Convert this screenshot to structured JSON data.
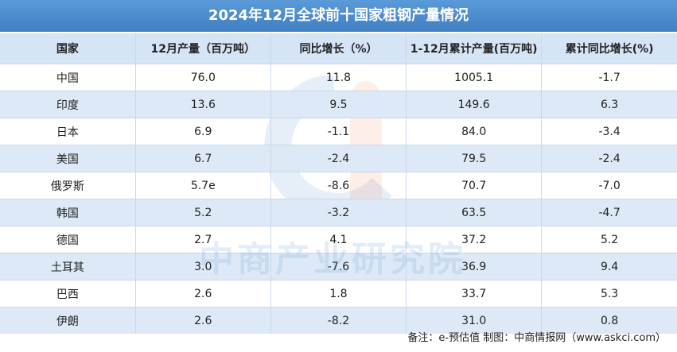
{
  "header": {
    "title": "2024年12月全球前十国家粗钢产量情况"
  },
  "table": {
    "columns": [
      "国家",
      "12月产量（百万吨）",
      "同比增长（%）",
      "1-12月累计产量(百万吨)",
      "累计同比增长(%)"
    ],
    "rows": [
      [
        "中国",
        "76.0",
        "11.8",
        "1005.1",
        "-1.7"
      ],
      [
        "印度",
        "13.6",
        "9.5",
        "149.6",
        "6.3"
      ],
      [
        "日本",
        "6.9",
        "-1.1",
        "84.0",
        "-3.4"
      ],
      [
        "美国",
        "6.7",
        "-2.4",
        "79.5",
        "-2.4"
      ],
      [
        "俄罗斯",
        "5.7e",
        "-8.6",
        "70.7",
        "-7.0"
      ],
      [
        "韩国",
        "5.2",
        "-3.2",
        "63.5",
        "-4.7"
      ],
      [
        "德国",
        "2.7",
        "4.1",
        "37.2",
        "5.2"
      ],
      [
        "土耳其",
        "3.0",
        "-7.6",
        "36.9",
        "9.4"
      ],
      [
        "巴西",
        "2.6",
        "1.8",
        "33.7",
        "5.3"
      ],
      [
        "伊朗",
        "2.6",
        "-8.2",
        "31.0",
        "0.8"
      ]
    ]
  },
  "watermark": "中商产业研究院",
  "footer": "备注：e-预估值  制图：中商情报网（www.askci.com）"
}
